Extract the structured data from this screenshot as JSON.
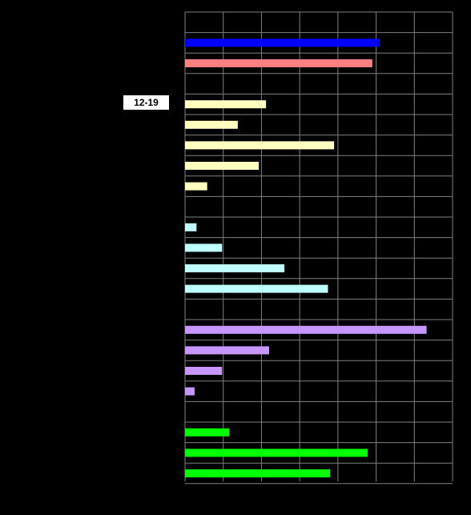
{
  "chart_data": {
    "type": "bar",
    "orientation": "horizontal",
    "xlim": [
      0,
      7
    ],
    "grid": true,
    "background": "#000000",
    "grid_color": "#808080",
    "highlight_label": "12-19",
    "groups": [
      {
        "bars": [
          {
            "value": 5.1,
            "color": "#0000ff"
          },
          {
            "value": 4.9,
            "color": "#ff8080"
          }
        ]
      },
      {
        "bars": [
          {
            "value": 2.12,
            "color": "#ffffc0"
          },
          {
            "value": 1.38,
            "color": "#ffffc0"
          },
          {
            "value": 3.9,
            "color": "#ffffc0"
          },
          {
            "value": 1.93,
            "color": "#ffffc0"
          },
          {
            "value": 0.58,
            "color": "#ffffc0"
          }
        ]
      },
      {
        "bars": [
          {
            "value": 0.3,
            "color": "#c0ffff"
          },
          {
            "value": 0.97,
            "color": "#c0ffff"
          },
          {
            "value": 2.6,
            "color": "#c0ffff"
          },
          {
            "value": 3.74,
            "color": "#c0ffff"
          }
        ]
      },
      {
        "bars": [
          {
            "value": 6.32,
            "color": "#c896ff"
          },
          {
            "value": 2.2,
            "color": "#c896ff"
          },
          {
            "value": 0.97,
            "color": "#c896ff"
          },
          {
            "value": 0.25,
            "color": "#c896ff"
          }
        ]
      },
      {
        "bars": [
          {
            "value": 1.16,
            "color": "#00ff00"
          },
          {
            "value": 4.78,
            "color": "#00ff00"
          },
          {
            "value": 3.8,
            "color": "#00ff00"
          }
        ]
      }
    ]
  }
}
